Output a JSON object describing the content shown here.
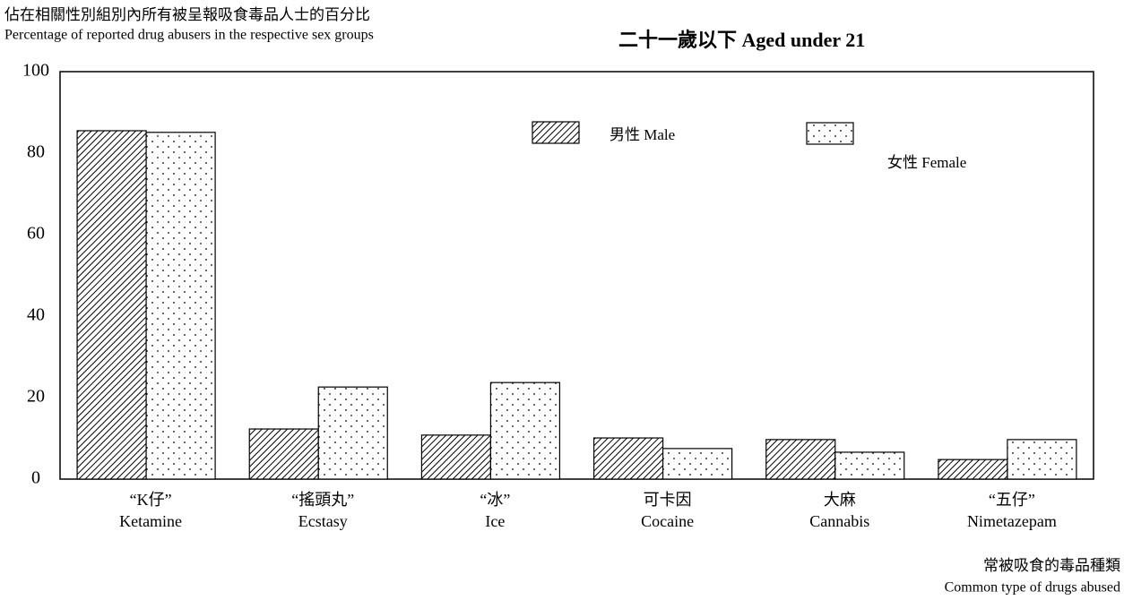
{
  "chart_data": {
    "type": "bar",
    "title": "二十一歲以下  Aged under 21",
    "y_label": [
      "佔在相關性別組別內所有被呈報吸食毒品人士的百分比",
      "Percentage of reported drug abusers in the respective sex groups"
    ],
    "x_label": [
      "常被吸食的毒品種類",
      "Common type of drugs abused"
    ],
    "categories": [
      [
        "“K仔”",
        "Ketamine"
      ],
      [
        "“搖頭丸”",
        "Ecstasy"
      ],
      [
        "“冰”",
        "Ice"
      ],
      [
        "可卡因",
        "Cocaine"
      ],
      [
        "大麻",
        "Cannabis"
      ],
      [
        "“五仔”",
        "Nimetazepam"
      ]
    ],
    "series": [
      {
        "name": "男性  Male",
        "color": "#000000",
        "pattern": "hatch",
        "values": [
          85.5,
          12.3,
          10.8,
          10.1,
          9.7,
          4.8
        ]
      },
      {
        "name": "女性  Female",
        "color": "#000000",
        "pattern": "dots",
        "values": [
          85.1,
          22.6,
          23.7,
          7.5,
          6.6,
          9.7
        ]
      }
    ],
    "ylim": [
      0,
      100
    ],
    "yticks": [
      0,
      20,
      40,
      60,
      80,
      100
    ],
    "grid": false
  }
}
